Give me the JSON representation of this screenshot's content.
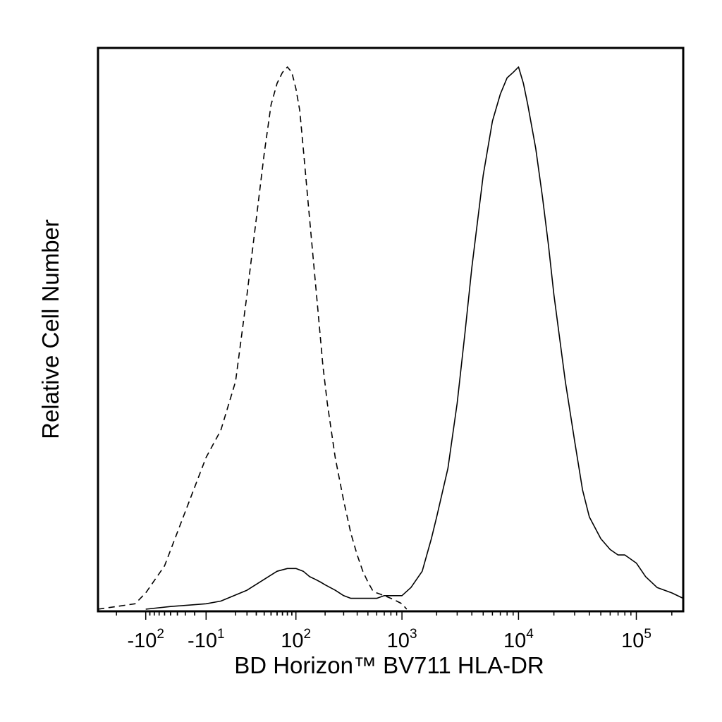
{
  "chart_data": {
    "type": "line",
    "xlabel": "BD Horizon™ BV711 HLA-DR",
    "ylabel": "Relative Cell Number",
    "x_scale": "biexponential",
    "xlim": [
      -300,
      250000
    ],
    "ylim": [
      0,
      100
    ],
    "grid": false,
    "legend": "none",
    "y_ticks_shown": false,
    "x_ticks": [
      {
        "value": -100,
        "base": "-10",
        "exp": "2"
      },
      {
        "value": -10,
        "base": "-10",
        "exp": "1"
      },
      {
        "value": 100,
        "base": "10",
        "exp": "2"
      },
      {
        "value": 1000,
        "base": "10",
        "exp": "3"
      },
      {
        "value": 10000,
        "base": "10",
        "exp": "4"
      },
      {
        "value": 100000,
        "base": "10",
        "exp": "5"
      }
    ],
    "series": [
      {
        "style": "dashed",
        "x": [
          -300,
          -200,
          -130,
          -100,
          -60,
          -30,
          -10,
          0,
          10,
          20,
          30,
          40,
          50,
          60,
          70,
          80,
          90,
          100,
          110,
          120,
          135,
          150,
          170,
          190,
          210,
          250,
          300,
          350,
          400,
          450,
          500,
          550,
          600,
          700,
          800,
          900,
          1000,
          1100
        ],
        "y": [
          0,
          0.5,
          1,
          3,
          8,
          18,
          28,
          33,
          42,
          58,
          72,
          84,
          93,
          97,
          99,
          100,
          99,
          96,
          92,
          85,
          75,
          66,
          55,
          45,
          38,
          28,
          20,
          14,
          10,
          7,
          5,
          3.5,
          3,
          2.5,
          2,
          1.5,
          1,
          0
        ]
      },
      {
        "style": "solid",
        "x": [
          -100,
          -50,
          -10,
          0,
          20,
          40,
          60,
          80,
          100,
          120,
          140,
          160,
          180,
          200,
          250,
          300,
          350,
          400,
          500,
          600,
          700,
          800,
          900,
          1000,
          1200,
          1500,
          1800,
          2000,
          2500,
          3000,
          3500,
          4000,
          5000,
          6000,
          7000,
          8000,
          9000,
          10000,
          11000,
          12000,
          14000,
          16000,
          18000,
          20000,
          25000,
          30000,
          35000,
          40000,
          50000,
          60000,
          70000,
          80000,
          100000,
          120000,
          150000,
          200000,
          250000
        ],
        "y": [
          0,
          0.5,
          1,
          1.5,
          3.5,
          5.5,
          7,
          7.5,
          7.5,
          7,
          6,
          5.5,
          5,
          4.5,
          3.5,
          2.5,
          2,
          2,
          2,
          2,
          2.5,
          2.5,
          2.5,
          2.5,
          4,
          7,
          13,
          17,
          26,
          38,
          51,
          63,
          80,
          90,
          95,
          98,
          99,
          100,
          97,
          93,
          85,
          76,
          67,
          58,
          42,
          31,
          22,
          17,
          13,
          11,
          10,
          10,
          8.5,
          6,
          4,
          3,
          2
        ]
      }
    ]
  }
}
